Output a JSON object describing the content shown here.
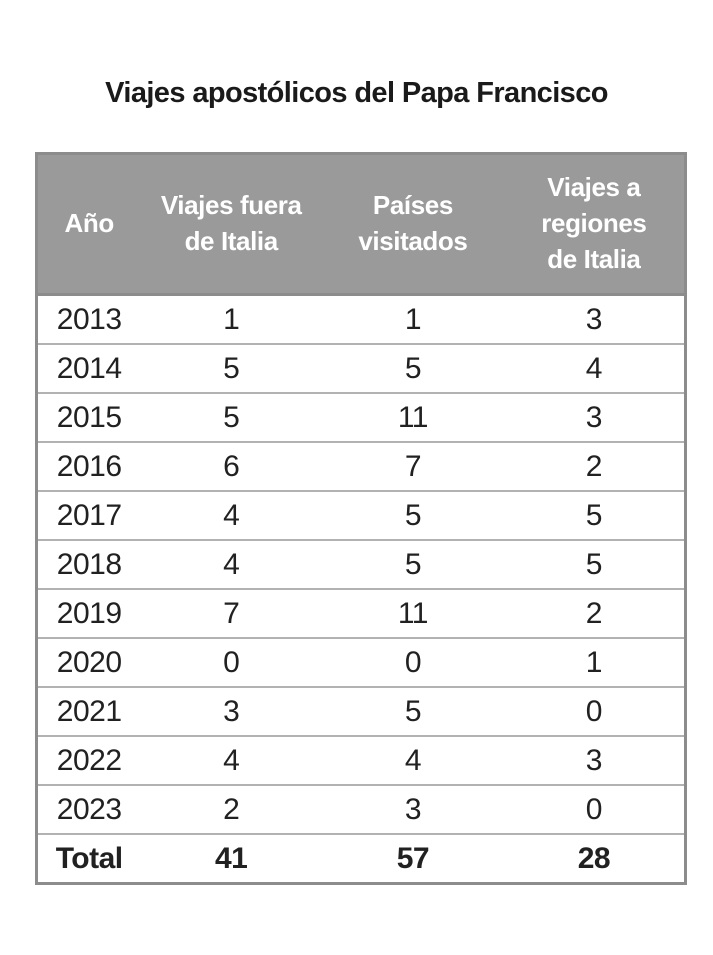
{
  "page": {
    "title": "Viajes apostólicos del Papa Francisco"
  },
  "table": {
    "columns": [
      {
        "label": "Año"
      },
      {
        "label": "Viajes fuera\nde Italia"
      },
      {
        "label": "Países\nvisitados"
      },
      {
        "label": "Viajes a\nregiones\nde Italia"
      }
    ],
    "rows": [
      [
        "2013",
        "1",
        "1",
        "3"
      ],
      [
        "2014",
        "5",
        "5",
        "4"
      ],
      [
        "2015",
        "5",
        "11",
        "3"
      ],
      [
        "2016",
        "6",
        "7",
        "2"
      ],
      [
        "2017",
        "4",
        "5",
        "5"
      ],
      [
        "2018",
        "4",
        "5",
        "5"
      ],
      [
        "2019",
        "7",
        "11",
        "2"
      ],
      [
        "2020",
        "0",
        "0",
        "1"
      ],
      [
        "2021",
        "3",
        "5",
        "0"
      ],
      [
        "2022",
        "4",
        "4",
        "3"
      ],
      [
        "2023",
        "2",
        "3",
        "0"
      ],
      [
        "Total",
        "41",
        "57",
        "28"
      ]
    ]
  },
  "colors": {
    "header_bg": "#9a9a9a",
    "header_text": "#ffffff",
    "outer_border": "#8c8c8c",
    "row_divider": "#b2b2b2",
    "body_text": "#212121",
    "page_bg": "#ffffff"
  },
  "chart_data": {
    "type": "table",
    "title": "Viajes apostólicos del Papa Francisco",
    "columns": [
      "Año",
      "Viajes fuera de Italia",
      "Países visitados",
      "Viajes a regiones de Italia"
    ],
    "categories": [
      "2013",
      "2014",
      "2015",
      "2016",
      "2017",
      "2018",
      "2019",
      "2020",
      "2021",
      "2022",
      "2023",
      "Total"
    ],
    "series": [
      {
        "name": "Viajes fuera de Italia",
        "values": [
          1,
          5,
          5,
          6,
          4,
          4,
          7,
          0,
          3,
          4,
          2,
          41
        ]
      },
      {
        "name": "Países visitados",
        "values": [
          1,
          5,
          11,
          7,
          5,
          5,
          11,
          0,
          5,
          4,
          3,
          57
        ]
      },
      {
        "name": "Viajes a regiones de Italia",
        "values": [
          3,
          4,
          3,
          2,
          5,
          5,
          2,
          1,
          0,
          3,
          0,
          28
        ]
      }
    ]
  }
}
